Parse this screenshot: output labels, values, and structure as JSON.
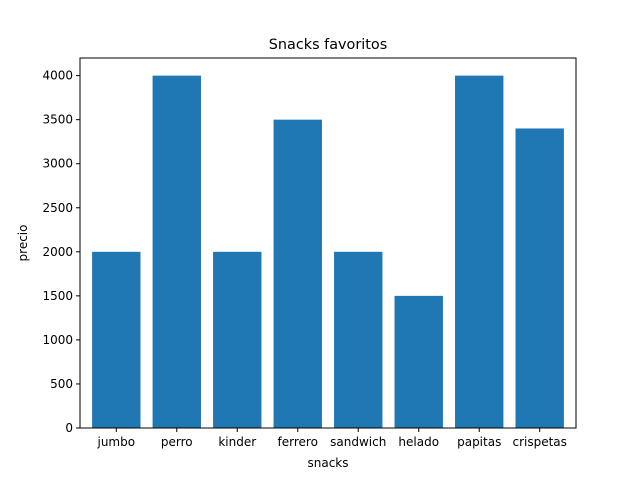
{
  "chart_data": {
    "type": "bar",
    "title": "Snacks favoritos",
    "xlabel": "snacks",
    "ylabel": "precio",
    "categories": [
      "jumbo",
      "perro",
      "kinder",
      "ferrero",
      "sandwich",
      "helado",
      "papitas",
      "crispetas"
    ],
    "values": [
      2000,
      4000,
      2000,
      3500,
      2000,
      1500,
      4000,
      3400
    ],
    "ylim": [
      0,
      4200
    ],
    "yticks": [
      0,
      500,
      1000,
      1500,
      2000,
      2500,
      3000,
      3500,
      4000
    ],
    "grid": false,
    "bar_color": "#1f77b4"
  }
}
